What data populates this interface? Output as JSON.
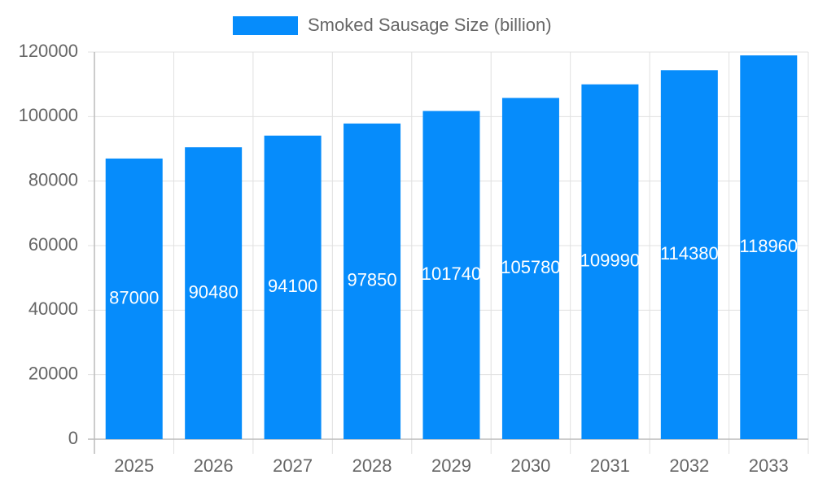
{
  "chart_data": {
    "type": "bar",
    "categories": [
      "2025",
      "2026",
      "2027",
      "2028",
      "2029",
      "2030",
      "2031",
      "2032",
      "2033"
    ],
    "series": [
      {
        "name": "Smoked Sausage Size (billion)",
        "color": "#068cfb",
        "values": [
          87000,
          90480,
          94100,
          97850,
          101740,
          105780,
          109990,
          114380,
          118960
        ]
      }
    ],
    "ylim": [
      0,
      120000
    ],
    "yticks": [
      0,
      20000,
      40000,
      60000,
      80000,
      100000,
      120000
    ],
    "grid": true,
    "legend": "top"
  }
}
